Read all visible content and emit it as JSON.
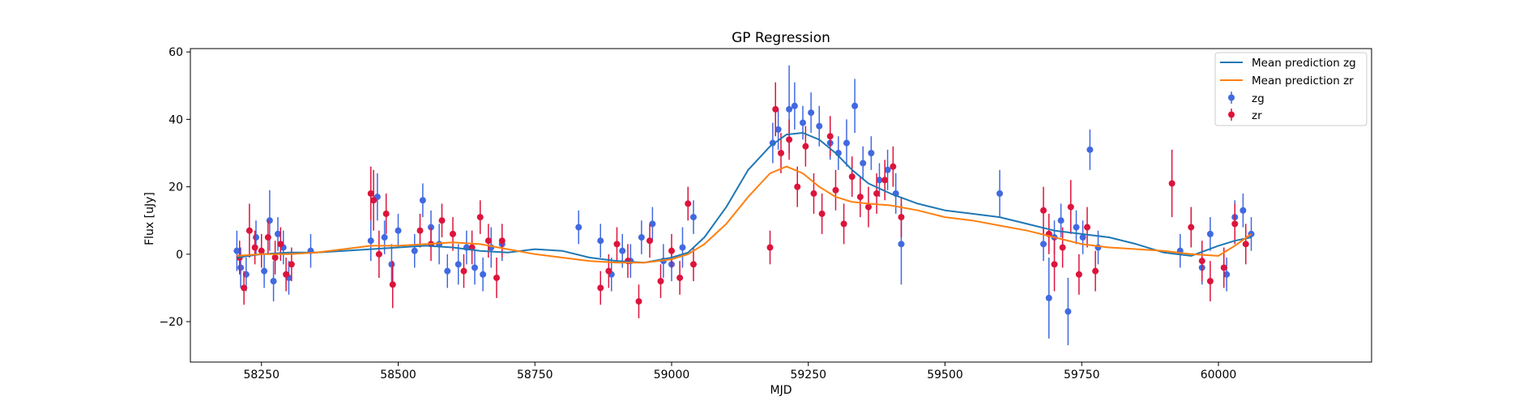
{
  "chart_data": {
    "type": "scatter",
    "title": "GP Regression",
    "xlabel": "MJD",
    "ylabel": "Flux [uJy]",
    "xlim": [
      58120,
      60280
    ],
    "ylim": [
      -32,
      61
    ],
    "xticks": [
      58250,
      58500,
      58750,
      59000,
      59250,
      59500,
      59750,
      60000
    ],
    "yticks": [
      -20,
      0,
      20,
      40,
      60
    ],
    "legend_position": "top-right",
    "grid": false,
    "colors": {
      "zg_line": "#1f77b4",
      "zr_line": "#ff7f0e",
      "zg_points": "#4169e1",
      "zr_points": "#dc143c"
    },
    "lines": [
      {
        "name": "Mean prediction zg",
        "color": "#1f77b4",
        "x": [
          58205,
          58250,
          58300,
          58350,
          58400,
          58450,
          58500,
          58550,
          58600,
          58650,
          58700,
          58750,
          58800,
          58850,
          58900,
          58950,
          59000,
          59030,
          59060,
          59100,
          59140,
          59180,
          59210,
          59240,
          59270,
          59300,
          59330,
          59360,
          59400,
          59450,
          59500,
          59550,
          59600,
          59650,
          59700,
          59750,
          59800,
          59850,
          59900,
          59950,
          60000,
          60030,
          60060
        ],
        "y": [
          -1,
          0,
          0.5,
          0.5,
          1,
          1.5,
          2,
          2.5,
          2,
          1,
          0.5,
          1.5,
          1,
          -1,
          -2,
          -2.5,
          -1,
          0.5,
          5,
          14,
          25,
          32,
          35.5,
          36,
          34,
          30,
          25,
          21,
          18,
          15,
          13,
          12,
          11,
          9,
          7,
          6,
          5,
          3,
          0.5,
          -0.5,
          2.5,
          4,
          5
        ]
      },
      {
        "name": "Mean prediction zr",
        "color": "#ff7f0e",
        "x": [
          58205,
          58250,
          58300,
          58350,
          58400,
          58450,
          58500,
          58550,
          58600,
          58650,
          58700,
          58750,
          58800,
          58850,
          58900,
          58950,
          59000,
          59030,
          59060,
          59100,
          59140,
          59180,
          59210,
          59240,
          59270,
          59300,
          59330,
          59360,
          59400,
          59450,
          59500,
          59550,
          59600,
          59650,
          59700,
          59750,
          59800,
          59850,
          59900,
          59950,
          60000,
          60030,
          60060
        ],
        "y": [
          -0.5,
          0,
          0,
          0.5,
          1.5,
          2.5,
          2.5,
          3,
          3.5,
          3,
          1.5,
          0,
          -1,
          -2,
          -2.5,
          -2.5,
          -1.5,
          0,
          3,
          9,
          17,
          24,
          26,
          24,
          20,
          17,
          15.5,
          15,
          14.5,
          13,
          11,
          10,
          8.5,
          7,
          5,
          3,
          2,
          1.5,
          1,
          0,
          -0.5,
          2.5,
          6
        ]
      }
    ],
    "series": [
      {
        "name": "zg",
        "color": "#4169e1",
        "x": [
          58205,
          58212,
          58222,
          58240,
          58255,
          58265,
          58272,
          58280,
          58290,
          58300,
          58340,
          58450,
          58462,
          58475,
          58488,
          58500,
          58530,
          58545,
          58560,
          58575,
          58590,
          58610,
          58625,
          58640,
          58655,
          58670,
          58690,
          58830,
          58870,
          58890,
          58910,
          58925,
          58945,
          58965,
          58985,
          59000,
          59020,
          59040,
          59185,
          59195,
          59215,
          59225,
          59240,
          59255,
          59270,
          59290,
          59305,
          59320,
          59335,
          59350,
          59365,
          59380,
          59395,
          59410,
          59420,
          59600,
          59680,
          59690,
          59700,
          59712,
          59725,
          59740,
          59752,
          59765,
          59780,
          59930,
          59970,
          59985,
          60015,
          60030,
          60045,
          60060
        ],
        "y": [
          1,
          -4,
          -6,
          5,
          -5,
          10,
          -8,
          6,
          2,
          -7,
          1,
          4,
          17,
          5,
          -3,
          7,
          1,
          16,
          8,
          3,
          -5,
          -3,
          2,
          -4,
          -6,
          2,
          3,
          8,
          4,
          -6,
          1,
          -2,
          5,
          9,
          -2,
          -3,
          2,
          11,
          33,
          37,
          43,
          44,
          39,
          42,
          38,
          33,
          30,
          33,
          44,
          27,
          30,
          22,
          25,
          18,
          3,
          18,
          3,
          -13,
          5,
          10,
          -17,
          8,
          5,
          31,
          2,
          1,
          -4,
          6,
          -6,
          11,
          13,
          6
        ],
        "yerr": [
          6,
          6,
          5,
          5,
          5,
          9,
          6,
          5,
          5,
          5,
          5,
          6,
          7,
          5,
          6,
          5,
          5,
          5,
          5,
          6,
          5,
          6,
          5,
          5,
          5,
          6,
          5,
          5,
          5,
          5,
          5,
          5,
          5,
          5,
          5,
          5,
          6,
          5,
          6,
          6,
          13,
          7,
          5,
          6,
          6,
          5,
          5,
          7,
          8,
          5,
          5,
          5,
          6,
          6,
          12,
          7,
          5,
          12,
          5,
          5,
          10,
          5,
          5,
          6,
          5,
          5,
          5,
          5,
          5,
          5,
          5,
          5
        ]
      },
      {
        "name": "zr",
        "color": "#dc143c",
        "x": [
          58210,
          58218,
          58228,
          58238,
          58250,
          58262,
          58275,
          58285,
          58295,
          58305,
          58450,
          58455,
          58465,
          58478,
          58490,
          58540,
          58560,
          58580,
          58600,
          58620,
          58635,
          58650,
          58665,
          58680,
          58690,
          58870,
          58885,
          58900,
          58920,
          58940,
          58960,
          58980,
          59000,
          59015,
          59030,
          59040,
          59180,
          59190,
          59200,
          59215,
          59230,
          59245,
          59260,
          59275,
          59290,
          59300,
          59315,
          59330,
          59345,
          59360,
          59375,
          59390,
          59405,
          59420,
          59680,
          59690,
          59700,
          59715,
          59730,
          59745,
          59760,
          59775,
          59915,
          59950,
          59970,
          59985,
          60010,
          60030,
          60050
        ],
        "y": [
          -1,
          -10,
          7,
          2,
          1,
          5,
          -1,
          3,
          -6,
          -3,
          18,
          16,
          0,
          12,
          -9,
          7,
          3,
          10,
          6,
          -5,
          2,
          11,
          4,
          -7,
          4,
          -10,
          -5,
          3,
          -2,
          -14,
          4,
          -8,
          1,
          -7,
          15,
          -3,
          2,
          43,
          30,
          34,
          20,
          32,
          18,
          12,
          35,
          19,
          9,
          23,
          17,
          14,
          18,
          22,
          26,
          11,
          13,
          6,
          -3,
          2,
          14,
          -6,
          8,
          -5,
          21,
          8,
          -2,
          -8,
          -4,
          9,
          3
        ],
        "yerr": [
          5,
          5,
          8,
          5,
          5,
          5,
          5,
          5,
          5,
          5,
          8,
          9,
          7,
          6,
          7,
          5,
          5,
          5,
          5,
          5,
          5,
          5,
          5,
          6,
          5,
          5,
          5,
          5,
          5,
          5,
          5,
          5,
          5,
          5,
          5,
          5,
          5,
          8,
          6,
          6,
          6,
          6,
          6,
          6,
          6,
          6,
          6,
          6,
          6,
          6,
          6,
          6,
          6,
          6,
          7,
          6,
          8,
          6,
          8,
          6,
          6,
          6,
          10,
          6,
          6,
          6,
          6,
          6,
          6
        ]
      }
    ]
  }
}
